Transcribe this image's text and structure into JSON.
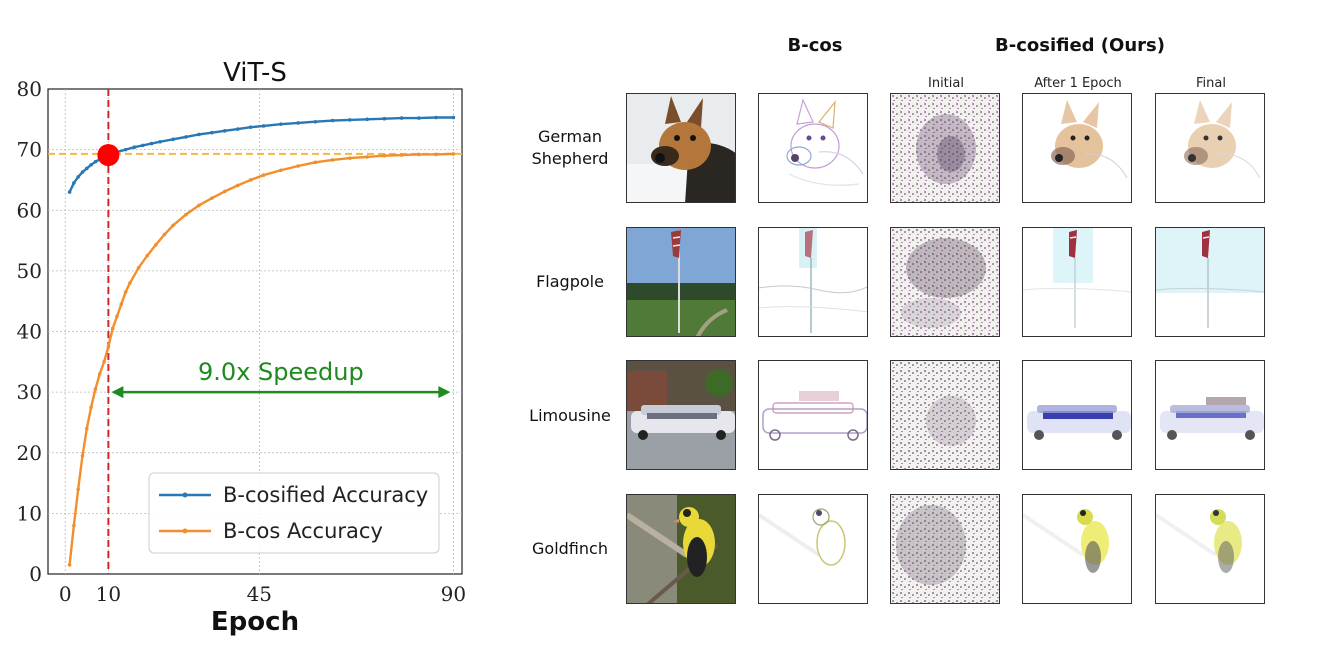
{
  "chart_data": {
    "type": "line",
    "title": "ViT-S",
    "xlabel": "Epoch",
    "ylabel": "",
    "xlim": [
      -4,
      92
    ],
    "ylim": [
      0,
      80
    ],
    "xticks": [
      0,
      10,
      45,
      90
    ],
    "xtick_labels": [
      "0",
      "10",
      "45",
      "90"
    ],
    "highlight_tick": "10",
    "yticks": [
      0,
      10,
      20,
      30,
      40,
      50,
      60,
      70,
      80
    ],
    "grid": true,
    "legend_position": "lower-right",
    "series": [
      {
        "name": "B-cosified Accuracy",
        "color": "#2878b5",
        "x": [
          1,
          2,
          3,
          4,
          5,
          6,
          7,
          8,
          9,
          10,
          12,
          14,
          16,
          18,
          20,
          22,
          25,
          28,
          31,
          34,
          37,
          40,
          43,
          46,
          50,
          54,
          58,
          62,
          66,
          70,
          74,
          78,
          82,
          86,
          90
        ],
        "y": [
          63.0,
          64.5,
          65.5,
          66.3,
          66.9,
          67.5,
          68.0,
          68.4,
          68.8,
          69.1,
          69.6,
          70.0,
          70.4,
          70.7,
          71.0,
          71.3,
          71.7,
          72.1,
          72.5,
          72.8,
          73.1,
          73.4,
          73.7,
          73.9,
          74.2,
          74.4,
          74.6,
          74.8,
          74.9,
          75.0,
          75.1,
          75.2,
          75.2,
          75.3,
          75.3
        ]
      },
      {
        "name": "B-cos Accuracy",
        "color": "#f28e2b",
        "x": [
          1,
          2,
          3,
          4,
          5,
          6,
          7,
          8,
          9,
          10,
          11,
          12,
          13,
          14,
          15,
          17,
          19,
          21,
          23,
          25,
          28,
          31,
          34,
          37,
          40,
          43,
          46,
          50,
          54,
          58,
          62,
          66,
          70,
          74,
          78,
          82,
          86,
          90
        ],
        "y": [
          1.5,
          8.0,
          14.0,
          19.5,
          24.0,
          27.5,
          30.5,
          33.0,
          35.0,
          37.5,
          40.5,
          42.5,
          44.5,
          46.5,
          48.0,
          50.5,
          52.5,
          54.3,
          56.0,
          57.5,
          59.3,
          60.8,
          62.0,
          63.1,
          64.1,
          65.0,
          65.8,
          66.6,
          67.3,
          67.9,
          68.3,
          68.6,
          68.8,
          69.0,
          69.1,
          69.2,
          69.2,
          69.3
        ]
      }
    ],
    "reference_lines": {
      "horizontal_y": 69.3,
      "horizontal_color": "#f5b642",
      "vertical_x": 10,
      "vertical_color": "#d62728"
    },
    "marker": {
      "x": 10,
      "y": 69.1,
      "color": "#ff0000"
    },
    "annotation": {
      "text": "9.0x Speedup",
      "x_start": 10,
      "x_end": 90,
      "y": 30,
      "color": "#1f8a1f"
    }
  },
  "grid_figure": {
    "header_left": "B-cos",
    "header_right": "B-cosified (Ours)",
    "subheaders": [
      "Initial",
      "After 1 Epoch",
      "Final"
    ],
    "rows": [
      {
        "label_line1": "German",
        "label_line2": "Shepherd"
      },
      {
        "label_line1": "Flagpole",
        "label_line2": ""
      },
      {
        "label_line1": "Limousine",
        "label_line2": ""
      },
      {
        "label_line1": "Goldfinch",
        "label_line2": ""
      }
    ]
  }
}
